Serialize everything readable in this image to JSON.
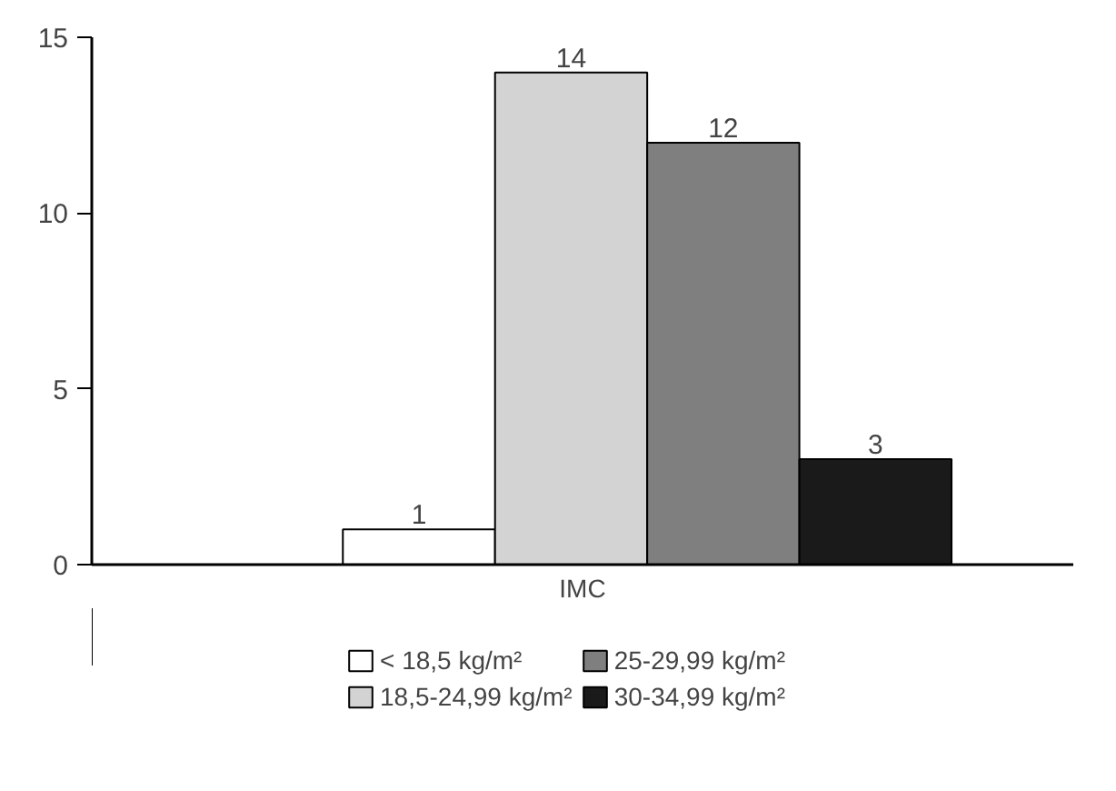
{
  "chart_data": {
    "type": "bar",
    "categories": [
      null
    ],
    "xlabel": "IMC",
    "series": [
      {
        "name": "< 18,5 kg/m²",
        "color": "#ffffff",
        "values": [
          1
        ]
      },
      {
        "name": "18,5-24,99 kg/m²",
        "color": "#d3d3d3",
        "values": [
          14
        ]
      },
      {
        "name": "25-29,99 kg/m²",
        "color": "#7f7f7f",
        "values": [
          12
        ]
      },
      {
        "name": "30-34,99 kg/m²",
        "color": "#1a1a1a",
        "values": [
          3
        ]
      }
    ],
    "ylim": [
      0,
      15
    ],
    "yticks": [
      0,
      5,
      10,
      15
    ],
    "grid": false,
    "legend": "bottom",
    "data_labels": true
  }
}
